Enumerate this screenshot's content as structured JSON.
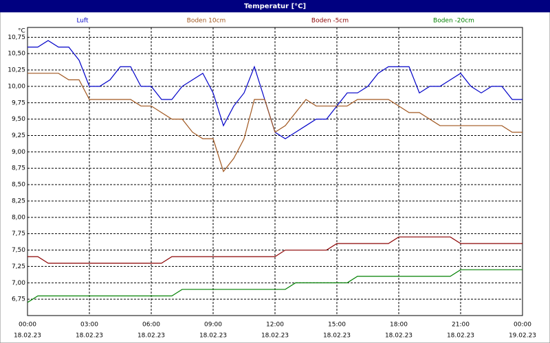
{
  "chart_data": {
    "type": "line",
    "title": "Temperatur [°C]",
    "y_unit": "°C",
    "x": [
      0,
      0.5,
      1,
      1.5,
      2,
      2.5,
      3,
      3.5,
      4,
      4.5,
      5,
      5.5,
      6,
      6.5,
      7,
      7.5,
      8,
      8.5,
      9,
      9.5,
      10,
      10.5,
      11,
      11.5,
      12,
      12.5,
      13,
      13.5,
      14,
      14.5,
      15,
      15.5,
      16,
      16.5,
      17,
      17.5,
      18,
      18.5,
      19,
      19.5,
      20,
      20.5,
      21,
      21.5,
      22,
      22.5,
      23,
      23.5,
      24
    ],
    "series": [
      {
        "name": "Luft",
        "color": "#0000c8",
        "values": [
          10.6,
          10.6,
          10.7,
          10.6,
          10.6,
          10.4,
          10.0,
          10.0,
          10.1,
          10.3,
          10.3,
          10.0,
          10.0,
          9.8,
          9.8,
          10.0,
          10.1,
          10.2,
          9.9,
          9.4,
          9.7,
          9.9,
          10.3,
          9.8,
          9.3,
          9.2,
          9.3,
          9.4,
          9.5,
          9.5,
          9.7,
          9.9,
          9.9,
          10.0,
          10.2,
          10.3,
          10.3,
          10.3,
          9.9,
          10.0,
          10.0,
          10.1,
          10.2,
          10.0,
          9.9,
          10.0,
          10.0,
          9.8,
          9.8
        ]
      },
      {
        "name": "Boden 10cm",
        "color": "#a0561e",
        "values": [
          10.2,
          10.2,
          10.2,
          10.2,
          10.1,
          10.1,
          9.8,
          9.8,
          9.8,
          9.8,
          9.8,
          9.7,
          9.7,
          9.6,
          9.5,
          9.5,
          9.3,
          9.2,
          9.2,
          8.7,
          8.9,
          9.2,
          9.8,
          9.8,
          9.3,
          9.4,
          9.6,
          9.8,
          9.7,
          9.7,
          9.7,
          9.7,
          9.8,
          9.8,
          9.8,
          9.8,
          9.7,
          9.6,
          9.6,
          9.5,
          9.4,
          9.4,
          9.4,
          9.4,
          9.4,
          9.4,
          9.4,
          9.3,
          9.3
        ]
      },
      {
        "name": "Boden -5cm",
        "color": "#8b0000",
        "values": [
          7.4,
          7.4,
          7.3,
          7.3,
          7.3,
          7.3,
          7.3,
          7.3,
          7.3,
          7.3,
          7.3,
          7.3,
          7.3,
          7.3,
          7.4,
          7.4,
          7.4,
          7.4,
          7.4,
          7.4,
          7.4,
          7.4,
          7.4,
          7.4,
          7.4,
          7.5,
          7.5,
          7.5,
          7.5,
          7.5,
          7.6,
          7.6,
          7.6,
          7.6,
          7.6,
          7.6,
          7.7,
          7.7,
          7.7,
          7.7,
          7.7,
          7.7,
          7.6,
          7.6,
          7.6,
          7.6,
          7.6,
          7.6,
          7.6
        ]
      },
      {
        "name": "Boden -20cm",
        "color": "#008000",
        "values": [
          6.7,
          6.8,
          6.8,
          6.8,
          6.8,
          6.8,
          6.8,
          6.8,
          6.8,
          6.8,
          6.8,
          6.8,
          6.8,
          6.8,
          6.8,
          6.9,
          6.9,
          6.9,
          6.9,
          6.9,
          6.9,
          6.9,
          6.9,
          6.9,
          6.9,
          6.9,
          7.0,
          7.0,
          7.0,
          7.0,
          7.0,
          7.0,
          7.1,
          7.1,
          7.1,
          7.1,
          7.1,
          7.1,
          7.1,
          7.1,
          7.1,
          7.1,
          7.2,
          7.2,
          7.2,
          7.2,
          7.2,
          7.2,
          7.2
        ]
      }
    ],
    "xlim": [
      0,
      24
    ],
    "xticks": [
      {
        "value": 0,
        "label": "00:00",
        "date": "18.02.23"
      },
      {
        "value": 3,
        "label": "03:00",
        "date": "18.02.23"
      },
      {
        "value": 6,
        "label": "06:00",
        "date": "18.02.23"
      },
      {
        "value": 9,
        "label": "09:00",
        "date": "18.02.23"
      },
      {
        "value": 12,
        "label": "12:00",
        "date": "18.02.23"
      },
      {
        "value": 15,
        "label": "15:00",
        "date": "18.02.23"
      },
      {
        "value": 18,
        "label": "18:00",
        "date": "18.02.23"
      },
      {
        "value": 21,
        "label": "21:00",
        "date": "18.02.23"
      },
      {
        "value": 24,
        "label": "00:00",
        "date": "19.02.23"
      }
    ],
    "ylim": [
      6.5,
      10.9
    ],
    "yticks": [
      {
        "value": 6.75,
        "label": "6,75"
      },
      {
        "value": 7,
        "label": "7,00"
      },
      {
        "value": 7.25,
        "label": "7,25"
      },
      {
        "value": 7.5,
        "label": "7,50"
      },
      {
        "value": 7.75,
        "label": "7,75"
      },
      {
        "value": 8,
        "label": "8,00"
      },
      {
        "value": 8.25,
        "label": "8,25"
      },
      {
        "value": 8.5,
        "label": "8,50"
      },
      {
        "value": 8.75,
        "label": "8,75"
      },
      {
        "value": 9,
        "label": "9,00"
      },
      {
        "value": 9.25,
        "label": "9,25"
      },
      {
        "value": 9.5,
        "label": "9,50"
      },
      {
        "value": 9.75,
        "label": "9,75"
      },
      {
        "value": 10,
        "label": "10,00"
      },
      {
        "value": 10.25,
        "label": "10,25"
      },
      {
        "value": 10.5,
        "label": "10,50"
      },
      {
        "value": 10.75,
        "label": "10,75"
      }
    ],
    "grid": true
  }
}
